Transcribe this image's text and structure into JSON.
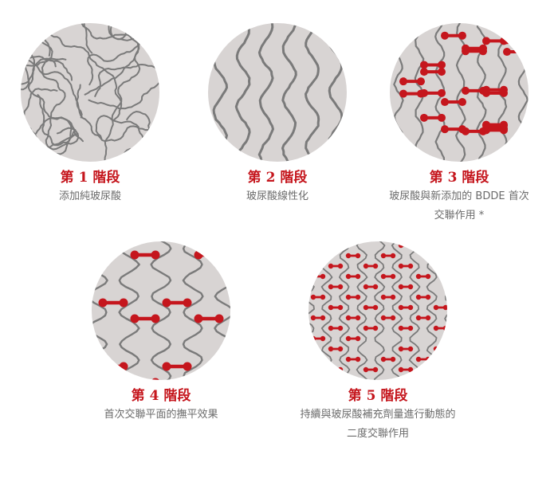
{
  "accent_color": "#c5161d",
  "disc_color": "#d8d4d3",
  "fiber_color": "#7a7a7a",
  "stages": [
    {
      "title": "第 1 階段",
      "desc_lines": [
        "添加純玻尿酸"
      ]
    },
    {
      "title": "第 2 階段",
      "desc_lines": [
        "玻尿酸線性化"
      ]
    },
    {
      "title": "第 3 階段",
      "desc_lines": [
        "玻尿酸與新添加的 BDDE 首次",
        "交聯作用 *"
      ]
    },
    {
      "title": "第 4 階段",
      "desc_lines": [
        "首次交聯平面的撫平效果"
      ]
    },
    {
      "title": "第 5 階段",
      "desc_lines": [
        "持續與玻尿酸補充劑量進行動態的",
        "二度交聯作用"
      ]
    }
  ]
}
